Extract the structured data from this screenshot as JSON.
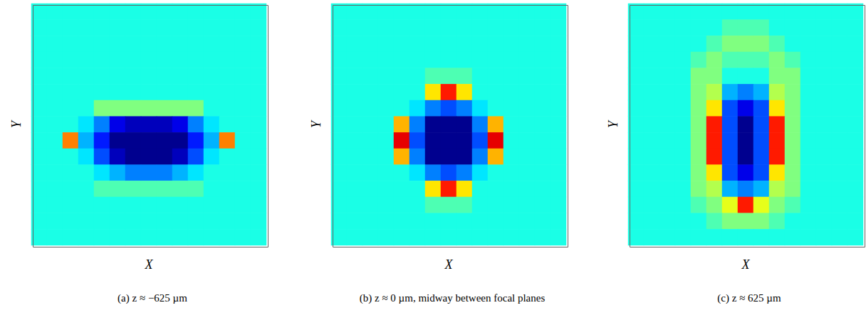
{
  "chart_data": [
    {
      "type": "heatmap",
      "title": "(a) z ≈ −625 µm",
      "x_label": "X",
      "y_label": "Y",
      "tick_labels": false,
      "zlim": [
        -10,
        10
      ],
      "cells": [
        [
          -2,
          -2,
          -2,
          -2,
          -2,
          -2,
          -2,
          -2,
          -2,
          -2,
          -2,
          -2,
          -2,
          -2,
          -2
        ],
        [
          -2,
          -2,
          -2,
          -2,
          -2,
          -2,
          -2,
          -2,
          -2,
          -2,
          -2,
          -2,
          -2,
          -2,
          -2
        ],
        [
          -2,
          -2,
          -2,
          -2,
          -2,
          -2,
          -2,
          -2,
          -2,
          -2,
          -2,
          -2,
          -2,
          -2,
          -2
        ],
        [
          -2,
          -2,
          -2,
          -2,
          -2,
          -2,
          -2,
          -2,
          -2,
          -2,
          -2,
          -2,
          -2,
          -2,
          -2
        ],
        [
          -2,
          -2,
          -2,
          -2,
          -2,
          -2,
          -2,
          -2,
          -2,
          -2,
          -2,
          -2,
          -2,
          -2,
          -2
        ],
        [
          -2,
          -2,
          -2,
          -2,
          -2,
          -2,
          -2,
          -2,
          -2,
          -2,
          -2,
          -2,
          -2,
          -2,
          -2
        ],
        [
          -2,
          -2,
          -2,
          -2,
          0,
          0,
          0,
          0,
          0,
          0,
          0,
          -2,
          -2,
          -2,
          -2
        ],
        [
          -2,
          -2,
          -2,
          -3,
          -5,
          -8,
          -9,
          -9,
          -9,
          -8,
          -5,
          -3,
          -2,
          -2,
          -2
        ],
        [
          -2,
          -2,
          5,
          -4,
          -7,
          -10,
          -10,
          -10,
          -10,
          -10,
          -7,
          -4,
          5,
          -2,
          -2
        ],
        [
          -2,
          -2,
          -2,
          -3,
          -6,
          -9,
          -10,
          -10,
          -10,
          -9,
          -6,
          -3,
          -2,
          -2,
          -2
        ],
        [
          -2,
          -2,
          -2,
          -2,
          -3,
          -4,
          -5,
          -5,
          -5,
          -4,
          -3,
          -2,
          -2,
          -2,
          -2
        ],
        [
          -2,
          -2,
          -2,
          -2,
          -1,
          -1,
          -1,
          -1,
          -1,
          -1,
          -1,
          -2,
          -2,
          -2,
          -2
        ],
        [
          -2,
          -2,
          -2,
          -2,
          -2,
          -2,
          -2,
          -2,
          -2,
          -2,
          -2,
          -2,
          -2,
          -2,
          -2
        ],
        [
          -2,
          -2,
          -2,
          -2,
          -2,
          -2,
          -2,
          -2,
          -2,
          -2,
          -2,
          -2,
          -2,
          -2,
          -2
        ],
        [
          -2,
          -2,
          -2,
          -2,
          -2,
          -2,
          -2,
          -2,
          -2,
          -2,
          -2,
          -2,
          -2,
          -2,
          -2
        ]
      ]
    },
    {
      "type": "heatmap",
      "title": "(b) z ≈ 0 µm, midway between focal planes",
      "x_label": "X",
      "y_label": "Y",
      "tick_labels": false,
      "zlim": [
        -10,
        10
      ],
      "cells": [
        [
          -2,
          -2,
          -2,
          -2,
          -2,
          -2,
          -2,
          -2,
          -2,
          -2,
          -2,
          -2,
          -2,
          -2,
          -2
        ],
        [
          -2,
          -2,
          -2,
          -2,
          -2,
          -2,
          -2,
          -2,
          -2,
          -2,
          -2,
          -2,
          -2,
          -2,
          -2
        ],
        [
          -2,
          -2,
          -2,
          -2,
          -2,
          -2,
          -2,
          -2,
          -2,
          -2,
          -2,
          -2,
          -2,
          -2,
          -2
        ],
        [
          -2,
          -2,
          -2,
          -2,
          -2,
          -2,
          -2,
          -2,
          -2,
          -2,
          -2,
          -2,
          -2,
          -2,
          -2
        ],
        [
          -2,
          -2,
          -2,
          -2,
          -2,
          -2,
          -1,
          -1,
          -1,
          -2,
          -2,
          -2,
          -2,
          -2,
          -2
        ],
        [
          -2,
          -2,
          -2,
          -2,
          -2,
          -2,
          3,
          7,
          3,
          -2,
          -2,
          -2,
          -2,
          -2,
          -2
        ],
        [
          -2,
          -2,
          -2,
          -2,
          -2,
          -3,
          -5,
          -6,
          -5,
          -3,
          -2,
          -2,
          -2,
          -2,
          -2
        ],
        [
          -2,
          -2,
          -2,
          -2,
          4,
          -5,
          -10,
          -10,
          -10,
          -5,
          4,
          -2,
          -2,
          -2,
          -2
        ],
        [
          -2,
          -2,
          -2,
          -2,
          8,
          -6,
          -10,
          -10,
          -10,
          -6,
          8,
          -2,
          -2,
          -2,
          -2
        ],
        [
          -2,
          -2,
          -2,
          -2,
          4,
          -5,
          -10,
          -10,
          -10,
          -5,
          4,
          -2,
          -2,
          -2,
          -2
        ],
        [
          -2,
          -2,
          -2,
          -2,
          -2,
          -3,
          -5,
          -6,
          -5,
          -3,
          -2,
          -2,
          -2,
          -2,
          -2
        ],
        [
          -2,
          -2,
          -2,
          -2,
          -2,
          -2,
          3,
          7,
          3,
          -2,
          -2,
          -2,
          -2,
          -2,
          -2
        ],
        [
          -2,
          -2,
          -2,
          -2,
          -2,
          -2,
          -1,
          -1,
          -1,
          -2,
          -2,
          -2,
          -2,
          -2,
          -2
        ],
        [
          -2,
          -2,
          -2,
          -2,
          -2,
          -2,
          -2,
          -2,
          -2,
          -2,
          -2,
          -2,
          -2,
          -2,
          -2
        ],
        [
          -2,
          -2,
          -2,
          -2,
          -2,
          -2,
          -2,
          -2,
          -2,
          -2,
          -2,
          -2,
          -2,
          -2,
          -2
        ]
      ]
    },
    {
      "type": "heatmap",
      "title": "(c) z ≈ 625 µm",
      "x_label": "X",
      "y_label": "Y",
      "tick_labels": false,
      "zlim": [
        -10,
        10
      ],
      "cells": [
        [
          -2,
          -2,
          -2,
          -2,
          -2,
          -2,
          -2,
          -2,
          -2,
          -2,
          -2,
          -2,
          -2,
          -2,
          -2
        ],
        [
          -2,
          -2,
          -2,
          -2,
          -2,
          -2,
          -1,
          -1,
          -1,
          -2,
          -2,
          -2,
          -2,
          -2,
          -2
        ],
        [
          -2,
          -2,
          -2,
          -2,
          -2,
          -1,
          0,
          0,
          0,
          -1,
          -2,
          -2,
          -2,
          -2,
          -2
        ],
        [
          -2,
          -2,
          -2,
          -2,
          -1,
          0,
          -1,
          -1,
          -1,
          0,
          -1,
          -2,
          -2,
          -2,
          -2
        ],
        [
          -2,
          -2,
          -2,
          -2,
          0,
          0,
          -2,
          -2,
          -2,
          0,
          0,
          -2,
          -2,
          -2,
          -2
        ],
        [
          -2,
          -2,
          -2,
          -2,
          0,
          1,
          -4,
          -5,
          -4,
          1,
          0,
          -2,
          -2,
          -2,
          -2
        ],
        [
          -2,
          -2,
          -2,
          -2,
          0,
          3,
          -6,
          -8,
          -6,
          3,
          0,
          -2,
          -2,
          -2,
          -2
        ],
        [
          -2,
          -2,
          -2,
          -2,
          0,
          7,
          -6,
          -10,
          -6,
          7,
          0,
          -2,
          -2,
          -2,
          -2
        ],
        [
          -2,
          -2,
          -2,
          -2,
          0,
          7,
          -6,
          -10,
          -6,
          7,
          0,
          -2,
          -2,
          -2,
          -2
        ],
        [
          -2,
          -2,
          -2,
          -2,
          0,
          7,
          -6,
          -10,
          -6,
          7,
          0,
          -2,
          -2,
          -2,
          -2
        ],
        [
          -2,
          -2,
          -2,
          -2,
          0,
          3,
          -6,
          -8,
          -6,
          3,
          0,
          -2,
          -2,
          -2,
          -2
        ],
        [
          -2,
          -2,
          -2,
          -2,
          0,
          1,
          -4,
          -5,
          -4,
          1,
          0,
          -2,
          -2,
          -2,
          -2
        ],
        [
          -2,
          -2,
          -2,
          -2,
          -1,
          0,
          2,
          7,
          2,
          0,
          -1,
          -2,
          -2,
          -2,
          -2
        ],
        [
          -2,
          -2,
          -2,
          -2,
          -2,
          -1,
          0,
          0,
          0,
          -1,
          -2,
          -2,
          -2,
          -2,
          -2
        ],
        [
          -2,
          -2,
          -2,
          -2,
          -2,
          -2,
          -2,
          -2,
          -2,
          -2,
          -2,
          -2,
          -2,
          -2,
          -2
        ]
      ]
    }
  ]
}
